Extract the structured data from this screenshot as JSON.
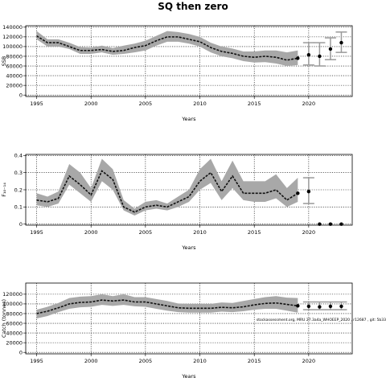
{
  "figure": {
    "title": "SQ then zero",
    "annotation": "stockassessment.org, MRU 27.3a4a_WHOEEP_2020 , r12687 , git: 5b33"
  },
  "chart_data": [
    {
      "type": "line",
      "panel": "ssb",
      "ylabel": "SSB",
      "xlabel": "Years",
      "xlim": [
        1994,
        2024
      ],
      "ylim": [
        -3000,
        143000
      ],
      "xticks": [
        1995,
        2000,
        2005,
        2010,
        2015,
        2020
      ],
      "yticks": [
        0,
        20000,
        40000,
        60000,
        80000,
        100000,
        120000,
        140000
      ],
      "grid": true,
      "historical": {
        "years": [
          1995,
          1996,
          1997,
          1998,
          1999,
          2000,
          2001,
          2002,
          2003,
          2004,
          2005,
          2006,
          2007,
          2008,
          2009,
          2010,
          2011,
          2012,
          2013,
          2014,
          2015,
          2016,
          2017,
          2018,
          2019
        ],
        "estimate": [
          122000,
          108000,
          108000,
          100000,
          92000,
          92000,
          94000,
          90000,
          92000,
          98000,
          102000,
          112000,
          120000,
          120000,
          115000,
          110000,
          98000,
          90000,
          86000,
          80000,
          78000,
          80000,
          78000,
          72000,
          76000
        ],
        "lower": [
          115000,
          100000,
          100000,
          95000,
          85000,
          85000,
          88000,
          83000,
          85000,
          88000,
          92000,
          102000,
          110000,
          110000,
          106000,
          100000,
          88000,
          80000,
          76000,
          70000,
          67000,
          68000,
          65000,
          60000,
          62000
        ],
        "upper": [
          132000,
          115000,
          115000,
          108000,
          99000,
          98000,
          102000,
          97000,
          102000,
          106000,
          112000,
          122000,
          132000,
          130000,
          126000,
          120000,
          108000,
          100000,
          96000,
          90000,
          90000,
          92000,
          92000,
          88000,
          92000
        ]
      },
      "forecast": {
        "years": [
          2019,
          2020,
          2021,
          2022,
          2023
        ],
        "median": [
          76000,
          83000,
          80000,
          95000,
          108000
        ],
        "lower": [
          null,
          62000,
          60000,
          73000,
          88000
        ],
        "upper": [
          null,
          108000,
          108000,
          118000,
          130000
        ]
      }
    },
    {
      "type": "line",
      "panel": "fbar",
      "ylabel": "F₁₀₋₁₄",
      "xlabel": "Years",
      "xlim": [
        1994,
        2024
      ],
      "ylim": [
        -0.006,
        0.406
      ],
      "xticks": [
        1995,
        2000,
        2005,
        2010,
        2015,
        2020
      ],
      "yticks": [
        0,
        0.1,
        0.2,
        0.3,
        0.4
      ],
      "grid": true,
      "historical": {
        "years": [
          1995,
          1996,
          1997,
          1998,
          1999,
          2000,
          2001,
          2002,
          2003,
          2004,
          2005,
          2006,
          2007,
          2008,
          2009,
          2010,
          2011,
          2012,
          2013,
          2014,
          2015,
          2016,
          2017,
          2018,
          2019
        ],
        "estimate": [
          0.14,
          0.13,
          0.15,
          0.28,
          0.23,
          0.17,
          0.31,
          0.26,
          0.1,
          0.07,
          0.1,
          0.11,
          0.1,
          0.13,
          0.16,
          0.25,
          0.3,
          0.19,
          0.28,
          0.18,
          0.18,
          0.18,
          0.2,
          0.14,
          0.18
        ],
        "lower": [
          0.11,
          0.1,
          0.12,
          0.23,
          0.18,
          0.13,
          0.25,
          0.2,
          0.08,
          0.05,
          0.08,
          0.09,
          0.08,
          0.1,
          0.13,
          0.2,
          0.24,
          0.14,
          0.21,
          0.14,
          0.13,
          0.13,
          0.15,
          0.1,
          0.13
        ],
        "upper": [
          0.18,
          0.16,
          0.19,
          0.35,
          0.3,
          0.21,
          0.38,
          0.32,
          0.14,
          0.09,
          0.13,
          0.14,
          0.12,
          0.16,
          0.2,
          0.32,
          0.38,
          0.25,
          0.37,
          0.25,
          0.25,
          0.25,
          0.29,
          0.21,
          0.27
        ]
      },
      "forecast": {
        "years": [
          2019,
          2020,
          2021,
          2022,
          2023
        ],
        "median": [
          0.18,
          0.19,
          0.0,
          0.0,
          0.0
        ],
        "lower": [
          null,
          0.12,
          null,
          null,
          null
        ],
        "upper": [
          null,
          0.27,
          null,
          null,
          null
        ]
      }
    },
    {
      "type": "line",
      "panel": "catch",
      "ylabel": "Catch (tonnes)",
      "xlabel": "Years",
      "xlim": [
        1994,
        2024
      ],
      "ylim": [
        -3000,
        143000
      ],
      "xticks": [
        1995,
        2000,
        2005,
        2010,
        2015,
        2020
      ],
      "yticks": [
        0,
        20000,
        40000,
        60000,
        80000,
        100000,
        120000
      ],
      "grid": true,
      "historical": {
        "years": [
          1995,
          1996,
          1997,
          1998,
          1999,
          2000,
          2001,
          2002,
          2003,
          2004,
          2005,
          2006,
          2007,
          2008,
          2009,
          2010,
          2011,
          2012,
          2013,
          2014,
          2015,
          2016,
          2017,
          2018,
          2019
        ],
        "estimate": [
          80000,
          85000,
          92000,
          100000,
          103000,
          104000,
          108000,
          106000,
          108000,
          104000,
          104000,
          100000,
          96000,
          92000,
          91000,
          91000,
          91000,
          93000,
          92000,
          94000,
          98000,
          101000,
          102000,
          99000,
          96000
        ],
        "lower": [
          70000,
          75000,
          83000,
          90000,
          93000,
          94000,
          98000,
          96000,
          98000,
          95000,
          94000,
          90000,
          86000,
          83000,
          82000,
          82000,
          82000,
          84000,
          83000,
          85000,
          88000,
          90000,
          90000,
          86000,
          82000
        ],
        "upper": [
          88000,
          94000,
          102000,
          112000,
          115000,
          116000,
          120000,
          116000,
          120000,
          114000,
          114000,
          110000,
          106000,
          101000,
          100000,
          100000,
          100000,
          103000,
          102000,
          106000,
          110000,
          114000,
          116000,
          113000,
          112000
        ]
      },
      "forecast": {
        "years": [
          2019,
          2020,
          2021,
          2022,
          2023
        ],
        "median": [
          96000,
          95000,
          94000,
          95000,
          95000
        ],
        "lower": [
          null,
          88000,
          88000,
          88000,
          88000
        ],
        "upper": [
          null,
          104000,
          104000,
          104000,
          104000
        ]
      }
    }
  ]
}
